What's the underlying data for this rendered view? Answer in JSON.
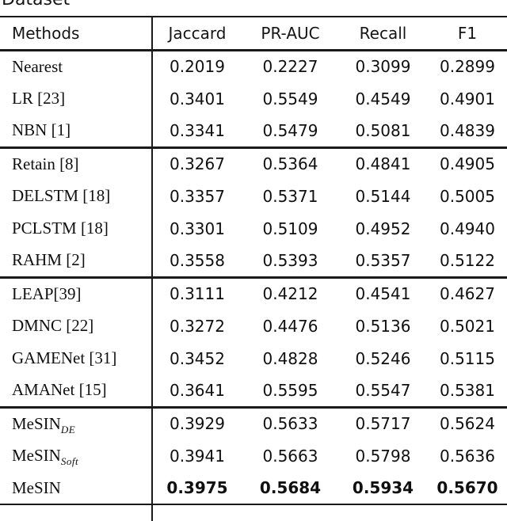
{
  "caption": "Dataset",
  "table": {
    "columns": [
      "Methods",
      "Jaccard",
      "PR-AUC",
      "Recall",
      "F1"
    ],
    "groups": [
      {
        "rows": [
          {
            "method": "Nearest",
            "values": [
              "0.2019",
              "0.2227",
              "0.3099",
              "0.2899"
            ]
          },
          {
            "method": "LR [23]",
            "values": [
              "0.3401",
              "0.5549",
              "0.4549",
              "0.4901"
            ]
          },
          {
            "method": "NBN [1]",
            "values": [
              "0.3341",
              "0.5479",
              "0.5081",
              "0.4839"
            ]
          }
        ]
      },
      {
        "rows": [
          {
            "method": "Retain [8]",
            "values": [
              "0.3267",
              "0.5364",
              "0.4841",
              "0.4905"
            ]
          },
          {
            "method": "DELSTM [18]",
            "values": [
              "0.3357",
              "0.5371",
              "0.5144",
              "0.5005"
            ]
          },
          {
            "method": "PCLSTM [18]",
            "values": [
              "0.3301",
              "0.5109",
              "0.4952",
              "0.4940"
            ]
          },
          {
            "method": "RAHM [2]",
            "values": [
              "0.3558",
              "0.5393",
              "0.5357",
              "0.5122"
            ]
          }
        ]
      },
      {
        "rows": [
          {
            "method": "LEAP[39]",
            "values": [
              "0.3111",
              "0.4212",
              "0.4541",
              "0.4627"
            ]
          },
          {
            "method": "DMNC [22]",
            "values": [
              "0.3272",
              "0.4476",
              "0.5136",
              "0.5021"
            ]
          },
          {
            "method": "GAMENet [31]",
            "values": [
              "0.3452",
              "0.4828",
              "0.5246",
              "0.5115"
            ]
          },
          {
            "method": "AMANet [15]",
            "values": [
              "0.3641",
              "0.5595",
              "0.5547",
              "0.5381"
            ]
          }
        ]
      },
      {
        "rows": [
          {
            "method": "MeSIN",
            "sub": "DE",
            "values": [
              "0.3929",
              "0.5633",
              "0.5717",
              "0.5624"
            ]
          },
          {
            "method": "MeSIN",
            "sub": "Soft",
            "values": [
              "0.3941",
              "0.5663",
              "0.5798",
              "0.5636"
            ]
          },
          {
            "method": "MeSIN",
            "bold": true,
            "values": [
              "0.3975",
              "0.5684",
              "0.5934",
              "0.5670"
            ]
          }
        ]
      }
    ]
  }
}
